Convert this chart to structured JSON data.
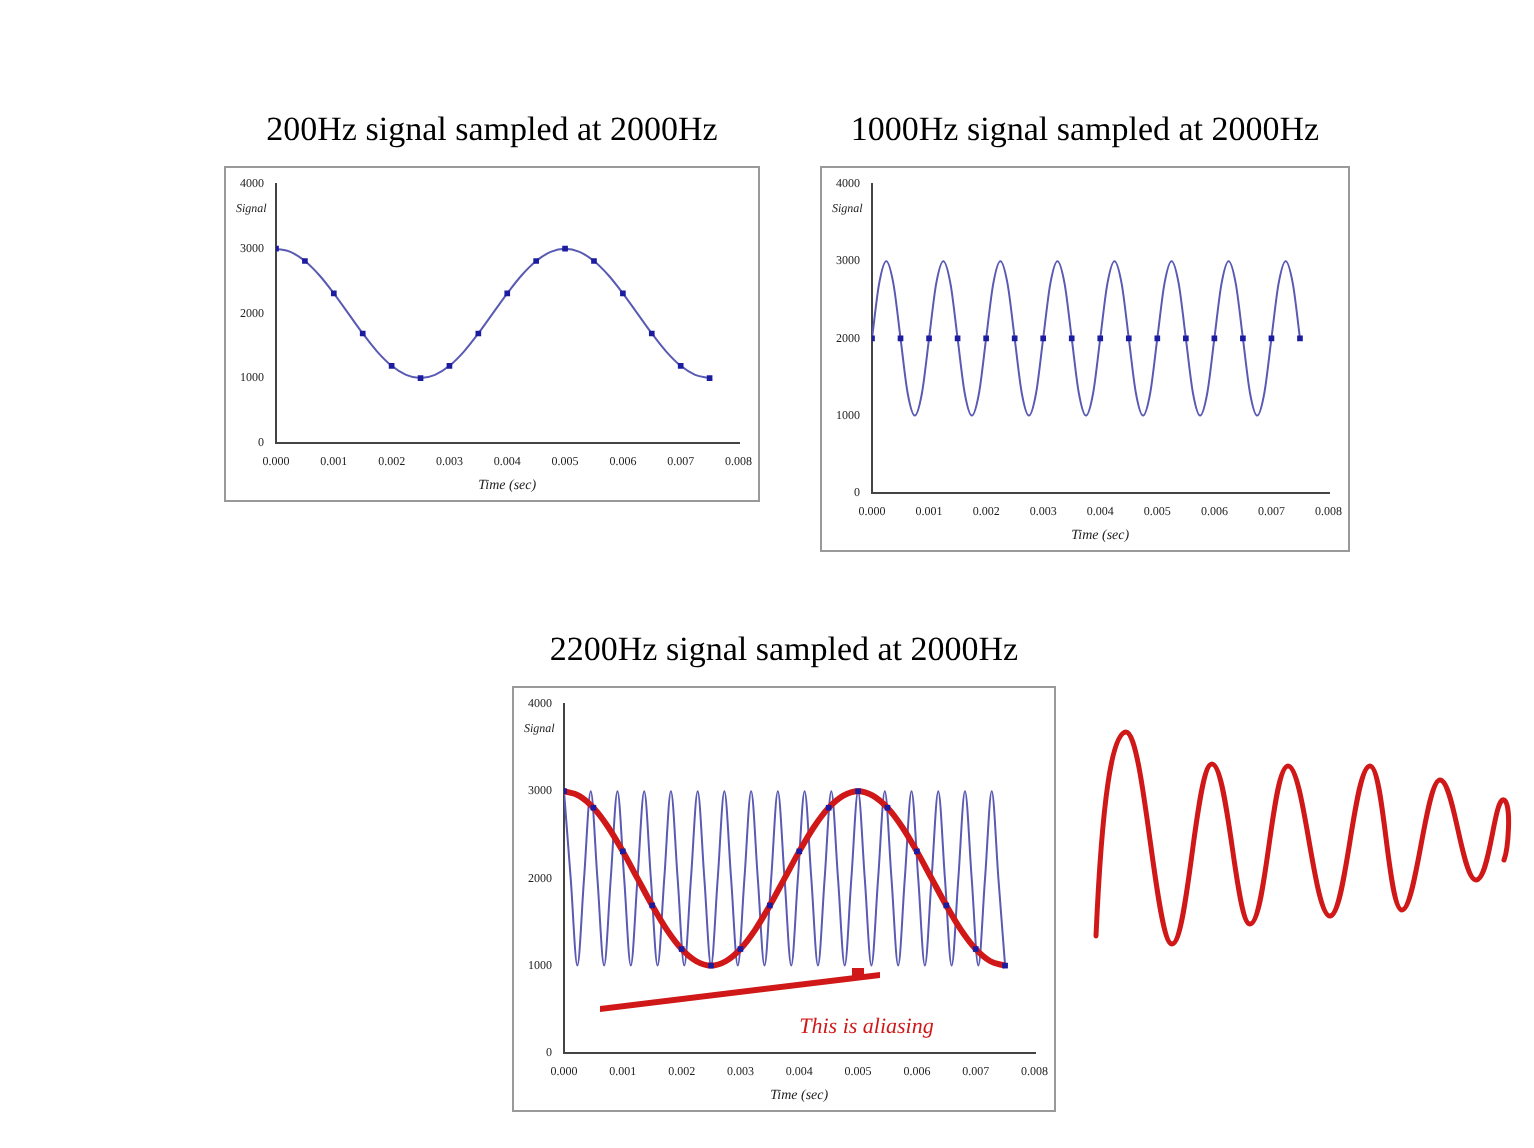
{
  "chart_data": [
    {
      "type": "line",
      "title": "200Hz signal sampled at 2000Hz",
      "ylabel": "Signal",
      "xlabel": "Time (sec)",
      "legend": false,
      "grid": false,
      "xlim": [
        0,
        0.008
      ],
      "xticks": [
        {
          "value": 0,
          "label": "0.000"
        },
        {
          "value": 0.001,
          "label": "0.001"
        },
        {
          "value": 0.002,
          "label": "0.002"
        },
        {
          "value": 0.003,
          "label": "0.003"
        },
        {
          "value": 0.004,
          "label": "0.004"
        },
        {
          "value": 0.005,
          "label": "0.005"
        },
        {
          "value": 0.006,
          "label": "0.006"
        },
        {
          "value": 0.007,
          "label": "0.007"
        },
        {
          "value": 0.008,
          "label": "0.008"
        }
      ],
      "ylim": [
        0,
        4000
      ],
      "yticks": [
        0,
        1000,
        2000,
        3000,
        4000
      ],
      "series": [
        {
          "type": "line",
          "color": "#5a5ab4",
          "x": [
            0,
            0.00025,
            0.0005,
            0.00075,
            0.001,
            0.00125,
            0.0015,
            0.00175,
            0.002,
            0.00225,
            0.0025,
            0.00275,
            0.003,
            0.00325,
            0.0035,
            0.00375,
            0.004,
            0.00425,
            0.0045,
            0.00475,
            0.005,
            0.00525,
            0.0055,
            0.00575,
            0.006,
            0.00625,
            0.0065,
            0.00675,
            0.007,
            0.00725,
            0.0075
          ],
          "values": [
            3000,
            2950,
            2810,
            2590,
            2310,
            2000,
            1690,
            1410,
            1190,
            1050,
            1000,
            1050,
            1190,
            1410,
            1690,
            2000,
            2310,
            2590,
            2810,
            2950,
            3000,
            2950,
            2810,
            2590,
            2310,
            2000,
            1690,
            1410,
            1190,
            1050,
            1000
          ]
        },
        {
          "type": "scatter",
          "color": "#1c1ca0",
          "x": [
            0,
            0.0005,
            0.001,
            0.0015,
            0.002,
            0.0025,
            0.003,
            0.0035,
            0.004,
            0.0045,
            0.005,
            0.0055,
            0.006,
            0.0065,
            0.007,
            0.0075
          ],
          "values": [
            3000,
            2810,
            2310,
            1690,
            1190,
            1000,
            1190,
            1690,
            2310,
            2810,
            3000,
            2810,
            2310,
            1690,
            1190,
            1000
          ],
          "marker": "square"
        }
      ]
    },
    {
      "type": "line",
      "title": "1000Hz signal sampled at 2000Hz",
      "ylabel": "Signal",
      "xlabel": "Time (sec)",
      "legend": false,
      "grid": false,
      "xlim": [
        0,
        0.008
      ],
      "xticks": [
        {
          "value": 0,
          "label": "0.000"
        },
        {
          "value": 0.001,
          "label": "0.001"
        },
        {
          "value": 0.002,
          "label": "0.002"
        },
        {
          "value": 0.003,
          "label": "0.003"
        },
        {
          "value": 0.004,
          "label": "0.004"
        },
        {
          "value": 0.005,
          "label": "0.005"
        },
        {
          "value": 0.006,
          "label": "0.006"
        },
        {
          "value": 0.007,
          "label": "0.007"
        },
        {
          "value": 0.008,
          "label": "0.008"
        }
      ],
      "ylim": [
        0,
        4000
      ],
      "yticks": [
        0,
        1000,
        2000,
        3000,
        4000
      ],
      "series": [
        {
          "type": "line",
          "color": "#5a5ab4",
          "x": [
            0,
            0.000125,
            0.00025,
            0.000375,
            0.0005,
            0.000625,
            0.00075,
            0.000875,
            0.001,
            0.001125,
            0.00125,
            0.001375,
            0.0015,
            0.001625,
            0.00175,
            0.001875,
            0.002,
            0.002125,
            0.00225,
            0.002375,
            0.0025,
            0.002625,
            0.00275,
            0.002875,
            0.003,
            0.003125,
            0.00325,
            0.003375,
            0.0035,
            0.003625,
            0.00375,
            0.003875,
            0.004,
            0.004125,
            0.00425,
            0.004375,
            0.0045,
            0.004625,
            0.00475,
            0.004875,
            0.005,
            0.005125,
            0.00525,
            0.005375,
            0.0055,
            0.005625,
            0.00575,
            0.005875,
            0.006,
            0.006125,
            0.00625,
            0.006375,
            0.0065,
            0.006625,
            0.00675,
            0.006875,
            0.007,
            0.007125,
            0.00725,
            0.007375,
            0.0075
          ],
          "values": [
            2000,
            2710,
            3000,
            2710,
            2000,
            1290,
            1000,
            1290,
            2000,
            2710,
            3000,
            2710,
            2000,
            1290,
            1000,
            1290,
            2000,
            2710,
            3000,
            2710,
            2000,
            1290,
            1000,
            1290,
            2000,
            2710,
            3000,
            2710,
            2000,
            1290,
            1000,
            1290,
            2000,
            2710,
            3000,
            2710,
            2000,
            1290,
            1000,
            1290,
            2000,
            2710,
            3000,
            2710,
            2000,
            1290,
            1000,
            1290,
            2000,
            2710,
            3000,
            2710,
            2000,
            1290,
            1000,
            1290,
            2000,
            2710,
            3000,
            2710,
            2000
          ]
        },
        {
          "type": "scatter",
          "color": "#1c1ca0",
          "x": [
            0,
            0.0005,
            0.001,
            0.0015,
            0.002,
            0.0025,
            0.003,
            0.0035,
            0.004,
            0.0045,
            0.005,
            0.0055,
            0.006,
            0.0065,
            0.007,
            0.0075
          ],
          "values": [
            2000,
            2000,
            2000,
            2000,
            2000,
            2000,
            2000,
            2000,
            2000,
            2000,
            2000,
            2000,
            2000,
            2000,
            2000,
            2000
          ],
          "marker": "square"
        }
      ]
    },
    {
      "type": "line",
      "title": "2200Hz signal sampled at 2000Hz",
      "ylabel": "Signal",
      "xlabel": "Time (sec)",
      "legend": false,
      "grid": false,
      "annotations": [
        "This is aliasing"
      ],
      "xlim": [
        0,
        0.008
      ],
      "xticks": [
        {
          "value": 0,
          "label": "0.000"
        },
        {
          "value": 0.001,
          "label": "0.001"
        },
        {
          "value": 0.002,
          "label": "0.002"
        },
        {
          "value": 0.003,
          "label": "0.003"
        },
        {
          "value": 0.004,
          "label": "0.004"
        },
        {
          "value": 0.005,
          "label": "0.005"
        },
        {
          "value": 0.006,
          "label": "0.006"
        },
        {
          "value": 0.007,
          "label": "0.007"
        },
        {
          "value": 0.008,
          "label": "0.008"
        }
      ],
      "ylim": [
        0,
        4000
      ],
      "yticks": [
        0,
        1000,
        2000,
        3000,
        4000
      ],
      "series": [
        {
          "type": "line",
          "color": "#5a5ab4",
          "x": [
            0,
            0.000114,
            0.000227,
            0.000341,
            0.000455,
            0.000568,
            0.000682,
            0.000795,
            0.000909,
            0.001023,
            0.001136,
            0.00125,
            0.001364,
            0.001477,
            0.001591,
            0.001705,
            0.001818,
            0.001932,
            0.002045,
            0.002159,
            0.002273,
            0.002386,
            0.0025,
            0.002614,
            0.002727,
            0.002841,
            0.002955,
            0.003068,
            0.003182,
            0.003295,
            0.003409,
            0.003523,
            0.003636,
            0.00375,
            0.003864,
            0.003977,
            0.004091,
            0.004205,
            0.004318,
            0.004432,
            0.004545,
            0.004659,
            0.004773,
            0.004886,
            0.005,
            0.005114,
            0.005227,
            0.005341,
            0.005455,
            0.005568,
            0.005682,
            0.005795,
            0.005909,
            0.006023,
            0.006136,
            0.00625,
            0.006364,
            0.006477,
            0.006591,
            0.006705,
            0.006818,
            0.006932,
            0.007045,
            0.007159,
            0.007273,
            0.007386,
            0.0075
          ],
          "values": [
            3000,
            2000,
            1000,
            2000,
            3000,
            2000,
            1000,
            2000,
            3000,
            2000,
            1000,
            2000,
            3000,
            2000,
            1000,
            2000,
            3000,
            2000,
            1000,
            2000,
            3000,
            2000,
            1000,
            2000,
            3000,
            2000,
            1000,
            2000,
            3000,
            2000,
            1000,
            2000,
            3000,
            2000,
            1000,
            2000,
            3000,
            2000,
            1000,
            2000,
            3000,
            2000,
            1000,
            2000,
            3000,
            2000,
            1000,
            2000,
            3000,
            2000,
            1000,
            2000,
            3000,
            2000,
            1000,
            2000,
            3000,
            2000,
            1000,
            2000,
            3000,
            2000,
            1000,
            2000,
            3000,
            2000,
            1000
          ]
        },
        {
          "type": "line",
          "color": "#d01818",
          "x": [
            0,
            0.00025,
            0.0005,
            0.00075,
            0.001,
            0.00125,
            0.0015,
            0.00175,
            0.002,
            0.00225,
            0.0025,
            0.00275,
            0.003,
            0.00325,
            0.0035,
            0.00375,
            0.004,
            0.00425,
            0.0045,
            0.00475,
            0.005,
            0.00525,
            0.0055,
            0.00575,
            0.006,
            0.00625,
            0.0065,
            0.00675,
            0.007,
            0.00725,
            0.0075
          ],
          "values": [
            3000,
            2950,
            2810,
            2590,
            2310,
            2000,
            1690,
            1410,
            1190,
            1050,
            1000,
            1050,
            1190,
            1410,
            1690,
            2000,
            2310,
            2590,
            2810,
            2950,
            3000,
            2950,
            2810,
            2590,
            2310,
            2000,
            1690,
            1410,
            1190,
            1050,
            1000
          ]
        },
        {
          "type": "scatter",
          "color": "#1c1ca0",
          "x": [
            0,
            0.0005,
            0.001,
            0.0015,
            0.002,
            0.0025,
            0.003,
            0.0035,
            0.004,
            0.0045,
            0.005,
            0.0055,
            0.006,
            0.0065,
            0.007,
            0.0075
          ],
          "values": [
            3000,
            2810,
            2310,
            1690,
            1190,
            1000,
            1190,
            1690,
            2310,
            2810,
            3000,
            2810,
            2310,
            1690,
            1190,
            1000
          ],
          "marker": "square"
        }
      ]
    }
  ]
}
